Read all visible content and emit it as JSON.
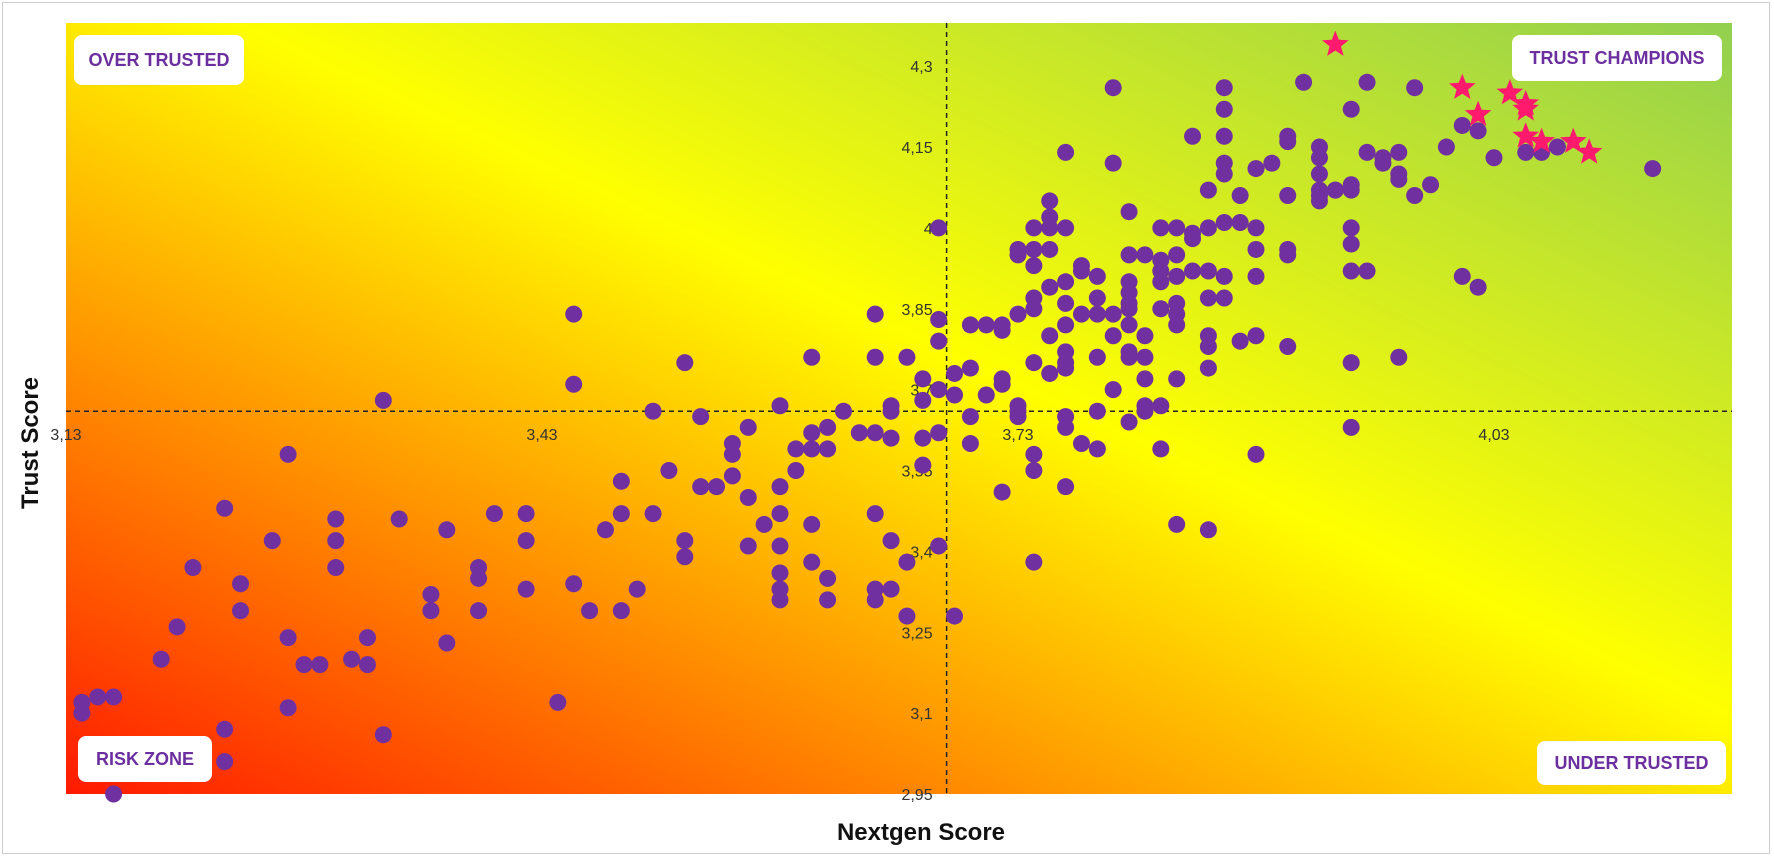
{
  "colors": {
    "dot": "#7030a0",
    "star": "#ff1a6e",
    "quad_text": "#6b2fa0",
    "gradient_red": "#ff1a00",
    "gradient_yellow": "#ffff00",
    "gradient_green": "#92d050"
  },
  "quadrants": {
    "top_left": "OVER TRUSTED",
    "top_right": "TRUST CHAMPIONS",
    "bottom_left": "RISK ZONE",
    "bottom_right": "UNDER TRUSTED"
  },
  "chart_data": {
    "type": "scatter",
    "xlabel": "Nextgen Score",
    "ylabel": "Trust Score",
    "xlim": [
      3.13,
      4.18
    ],
    "ylim": [
      2.95,
      4.38
    ],
    "x_ticks": [
      {
        "value": 3.13,
        "label": "3,13"
      },
      {
        "value": 3.43,
        "label": "3,43"
      },
      {
        "value": 3.73,
        "label": "3,73"
      },
      {
        "value": 4.03,
        "label": "4,03"
      }
    ],
    "y_ticks": [
      {
        "value": 2.95,
        "label": "2,95"
      },
      {
        "value": 3.1,
        "label": "3,1"
      },
      {
        "value": 3.25,
        "label": "3,25"
      },
      {
        "value": 3.4,
        "label": "3,4"
      },
      {
        "value": 3.55,
        "label": "3,55"
      },
      {
        "value": 3.7,
        "label": "3,7"
      },
      {
        "value": 3.85,
        "label": "3,85"
      },
      {
        "value": 4,
        "label": "4"
      },
      {
        "value": 4.15,
        "label": "4,15"
      },
      {
        "value": 4.3,
        "label": "4,3"
      }
    ],
    "x_reference": 3.685,
    "y_reference": 3.66,
    "series": [
      {
        "marker": "circle",
        "points": [
          [
            3.14,
            3.1
          ],
          [
            3.14,
            3.12
          ],
          [
            3.15,
            3.13
          ],
          [
            3.16,
            3.13
          ],
          [
            3.16,
            2.95
          ],
          [
            3.19,
            3.2
          ],
          [
            3.2,
            3.26
          ],
          [
            3.21,
            3.37
          ],
          [
            3.23,
            3.01
          ],
          [
            3.23,
            3.07
          ],
          [
            3.23,
            3.48
          ],
          [
            3.24,
            3.29
          ],
          [
            3.24,
            3.34
          ],
          [
            3.26,
            3.42
          ],
          [
            3.27,
            3.24
          ],
          [
            3.27,
            3.11
          ],
          [
            3.27,
            3.58
          ],
          [
            3.28,
            3.19
          ],
          [
            3.29,
            3.19
          ],
          [
            3.3,
            3.37
          ],
          [
            3.3,
            3.42
          ],
          [
            3.3,
            3.46
          ],
          [
            3.31,
            3.2
          ],
          [
            3.32,
            3.19
          ],
          [
            3.32,
            3.24
          ],
          [
            3.33,
            3.06
          ],
          [
            3.33,
            3.68
          ],
          [
            3.34,
            3.46
          ],
          [
            3.36,
            3.29
          ],
          [
            3.36,
            3.32
          ],
          [
            3.37,
            3.23
          ],
          [
            3.37,
            3.44
          ],
          [
            3.39,
            3.29
          ],
          [
            3.39,
            3.35
          ],
          [
            3.39,
            3.37
          ],
          [
            3.4,
            3.47
          ],
          [
            3.42,
            3.47
          ],
          [
            3.42,
            3.42
          ],
          [
            3.42,
            3.33
          ],
          [
            3.44,
            3.12
          ],
          [
            3.45,
            3.71
          ],
          [
            3.45,
            3.84
          ],
          [
            3.45,
            3.34
          ],
          [
            3.46,
            3.29
          ],
          [
            3.47,
            3.44
          ],
          [
            3.48,
            3.29
          ],
          [
            3.48,
            3.47
          ],
          [
            3.48,
            3.53
          ],
          [
            3.49,
            3.33
          ],
          [
            3.5,
            3.47
          ],
          [
            3.5,
            3.66
          ],
          [
            3.51,
            3.55
          ],
          [
            3.52,
            3.42
          ],
          [
            3.52,
            3.39
          ],
          [
            3.52,
            3.75
          ],
          [
            3.53,
            3.52
          ],
          [
            3.53,
            3.65
          ],
          [
            3.54,
            3.52
          ],
          [
            3.55,
            3.58
          ],
          [
            3.55,
            3.6
          ],
          [
            3.55,
            3.54
          ],
          [
            3.56,
            3.5
          ],
          [
            3.56,
            3.41
          ],
          [
            3.56,
            3.63
          ],
          [
            3.57,
            3.45
          ],
          [
            3.58,
            3.47
          ],
          [
            3.58,
            3.41
          ],
          [
            3.58,
            3.36
          ],
          [
            3.58,
            3.31
          ],
          [
            3.58,
            3.33
          ],
          [
            3.58,
            3.67
          ],
          [
            3.58,
            3.52
          ],
          [
            3.59,
            3.55
          ],
          [
            3.59,
            3.59
          ],
          [
            3.6,
            3.38
          ],
          [
            3.6,
            3.45
          ],
          [
            3.6,
            3.62
          ],
          [
            3.6,
            3.59
          ],
          [
            3.6,
            3.76
          ],
          [
            3.61,
            3.35
          ],
          [
            3.61,
            3.31
          ],
          [
            3.61,
            3.63
          ],
          [
            3.61,
            3.59
          ],
          [
            3.62,
            3.66
          ],
          [
            3.63,
            3.62
          ],
          [
            3.64,
            3.84
          ],
          [
            3.64,
            3.76
          ],
          [
            3.64,
            3.62
          ],
          [
            3.64,
            3.47
          ],
          [
            3.64,
            3.31
          ],
          [
            3.64,
            3.33
          ],
          [
            3.65,
            3.61
          ],
          [
            3.65,
            3.66
          ],
          [
            3.65,
            3.67
          ],
          [
            3.65,
            3.42
          ],
          [
            3.65,
            3.33
          ],
          [
            3.66,
            3.76
          ],
          [
            3.66,
            3.38
          ],
          [
            3.66,
            3.28
          ],
          [
            3.67,
            3.72
          ],
          [
            3.67,
            3.61
          ],
          [
            3.67,
            3.56
          ],
          [
            3.67,
            3.68
          ],
          [
            3.68,
            3.79
          ],
          [
            3.68,
            3.83
          ],
          [
            3.68,
            3.62
          ],
          [
            3.68,
            3.41
          ],
          [
            3.68,
            3.7
          ],
          [
            3.68,
            4.0
          ],
          [
            3.69,
            3.73
          ],
          [
            3.69,
            3.69
          ],
          [
            3.69,
            3.28
          ],
          [
            3.7,
            3.65
          ],
          [
            3.7,
            3.82
          ],
          [
            3.7,
            3.74
          ],
          [
            3.7,
            3.6
          ],
          [
            3.71,
            3.82
          ],
          [
            3.71,
            3.69
          ],
          [
            3.72,
            3.82
          ],
          [
            3.72,
            3.81
          ],
          [
            3.72,
            3.72
          ],
          [
            3.72,
            3.71
          ],
          [
            3.72,
            3.51
          ],
          [
            3.73,
            3.84
          ],
          [
            3.73,
            3.67
          ],
          [
            3.73,
            3.66
          ],
          [
            3.73,
            3.65
          ],
          [
            3.73,
            3.95
          ],
          [
            3.73,
            3.96
          ],
          [
            3.74,
            3.85
          ],
          [
            3.74,
            3.75
          ],
          [
            3.74,
            3.55
          ],
          [
            3.74,
            3.58
          ],
          [
            3.74,
            3.93
          ],
          [
            3.74,
            3.96
          ],
          [
            3.74,
            3.87
          ],
          [
            3.74,
            4.0
          ],
          [
            3.74,
            3.38
          ],
          [
            3.75,
            3.89
          ],
          [
            3.75,
            4.05
          ],
          [
            3.75,
            4.02
          ],
          [
            3.75,
            4.0
          ],
          [
            3.75,
            3.96
          ],
          [
            3.75,
            3.73
          ],
          [
            3.75,
            3.8
          ],
          [
            3.76,
            3.74
          ],
          [
            3.76,
            3.75
          ],
          [
            3.76,
            3.86
          ],
          [
            3.76,
            3.9
          ],
          [
            3.76,
            3.82
          ],
          [
            3.76,
            3.77
          ],
          [
            3.76,
            4.0
          ],
          [
            3.76,
            3.65
          ],
          [
            3.76,
            3.63
          ],
          [
            3.76,
            3.52
          ],
          [
            3.76,
            4.14
          ],
          [
            3.77,
            3.84
          ],
          [
            3.77,
            3.6
          ],
          [
            3.77,
            3.93
          ],
          [
            3.77,
            3.92
          ],
          [
            3.78,
            3.84
          ],
          [
            3.78,
            3.59
          ],
          [
            3.78,
            3.87
          ],
          [
            3.78,
            3.76
          ],
          [
            3.78,
            3.91
          ],
          [
            3.78,
            3.66
          ],
          [
            3.79,
            3.84
          ],
          [
            3.79,
            3.8
          ],
          [
            3.79,
            3.7
          ],
          [
            3.79,
            4.12
          ],
          [
            3.79,
            4.26
          ],
          [
            3.8,
            3.82
          ],
          [
            3.8,
            3.77
          ],
          [
            3.8,
            3.86
          ],
          [
            3.8,
            3.85
          ],
          [
            3.8,
            3.88
          ],
          [
            3.8,
            3.9
          ],
          [
            3.8,
            3.95
          ],
          [
            3.8,
            4.03
          ],
          [
            3.8,
            3.76
          ],
          [
            3.8,
            3.64
          ],
          [
            3.81,
            3.8
          ],
          [
            3.81,
            3.95
          ],
          [
            3.81,
            3.76
          ],
          [
            3.81,
            3.67
          ],
          [
            3.81,
            3.72
          ],
          [
            3.81,
            3.66
          ],
          [
            3.82,
            3.85
          ],
          [
            3.82,
            3.9
          ],
          [
            3.82,
            3.92
          ],
          [
            3.82,
            4.0
          ],
          [
            3.82,
            3.94
          ],
          [
            3.82,
            3.67
          ],
          [
            3.82,
            3.59
          ],
          [
            3.83,
            4.0
          ],
          [
            3.83,
            3.91
          ],
          [
            3.83,
            3.86
          ],
          [
            3.83,
            3.84
          ],
          [
            3.83,
            3.82
          ],
          [
            3.83,
            3.95
          ],
          [
            3.83,
            3.72
          ],
          [
            3.83,
            3.45
          ],
          [
            3.84,
            3.92
          ],
          [
            3.84,
            3.99
          ],
          [
            3.84,
            3.98
          ],
          [
            3.84,
            4.17
          ],
          [
            3.85,
            3.92
          ],
          [
            3.85,
            3.87
          ],
          [
            3.85,
            3.8
          ],
          [
            3.85,
            3.78
          ],
          [
            3.85,
            3.44
          ],
          [
            3.85,
            3.74
          ],
          [
            3.85,
            4.07
          ],
          [
            3.85,
            4.0
          ],
          [
            3.86,
            3.91
          ],
          [
            3.86,
            4.1
          ],
          [
            3.86,
            4.01
          ],
          [
            3.86,
            3.87
          ],
          [
            3.86,
            4.12
          ],
          [
            3.86,
            4.22
          ],
          [
            3.86,
            4.26
          ],
          [
            3.86,
            4.17
          ],
          [
            3.87,
            4.06
          ],
          [
            3.87,
            4.01
          ],
          [
            3.87,
            3.79
          ],
          [
            3.88,
            4.0
          ],
          [
            3.88,
            3.91
          ],
          [
            3.88,
            3.96
          ],
          [
            3.88,
            3.8
          ],
          [
            3.88,
            3.58
          ],
          [
            3.88,
            4.11
          ],
          [
            3.89,
            4.12
          ],
          [
            3.9,
            4.17
          ],
          [
            3.9,
            4.06
          ],
          [
            3.9,
            4.16
          ],
          [
            3.9,
            3.95
          ],
          [
            3.9,
            3.96
          ],
          [
            3.9,
            3.78
          ],
          [
            3.91,
            4.27
          ],
          [
            3.92,
            4.07
          ],
          [
            3.92,
            4.05
          ],
          [
            3.92,
            4.1
          ],
          [
            3.92,
            4.13
          ],
          [
            3.92,
            4.15
          ],
          [
            3.92,
            4.06
          ],
          [
            3.93,
            4.07
          ],
          [
            3.93,
            4.07
          ],
          [
            3.94,
            4.07
          ],
          [
            3.94,
            4.0
          ],
          [
            3.94,
            3.97
          ],
          [
            3.94,
            4.08
          ],
          [
            3.94,
            4.22
          ],
          [
            3.94,
            3.92
          ],
          [
            3.94,
            3.75
          ],
          [
            3.94,
            3.63
          ],
          [
            3.95,
            4.27
          ],
          [
            3.95,
            4.14
          ],
          [
            3.95,
            3.92
          ],
          [
            3.96,
            4.12
          ],
          [
            3.96,
            4.13
          ],
          [
            3.97,
            4.14
          ],
          [
            3.97,
            4.09
          ],
          [
            3.97,
            3.76
          ],
          [
            3.97,
            4.1
          ],
          [
            3.98,
            4.26
          ],
          [
            3.98,
            4.06
          ],
          [
            3.99,
            4.08
          ],
          [
            4.0,
            4.15
          ],
          [
            4.01,
            4.19
          ],
          [
            4.01,
            3.91
          ],
          [
            4.02,
            4.18
          ],
          [
            4.02,
            3.89
          ],
          [
            4.03,
            4.13
          ],
          [
            4.05,
            4.14
          ],
          [
            4.06,
            4.14
          ],
          [
            4.07,
            4.15
          ],
          [
            4.13,
            4.11
          ]
        ]
      },
      {
        "marker": "star",
        "points": [
          [
            3.93,
            4.34
          ],
          [
            4.01,
            4.26
          ],
          [
            4.04,
            4.25
          ],
          [
            4.02,
            4.21
          ],
          [
            4.05,
            4.23
          ],
          [
            4.05,
            4.22
          ],
          [
            4.05,
            4.17
          ],
          [
            4.06,
            4.16
          ],
          [
            4.08,
            4.16
          ],
          [
            4.09,
            4.14
          ]
        ]
      }
    ]
  }
}
